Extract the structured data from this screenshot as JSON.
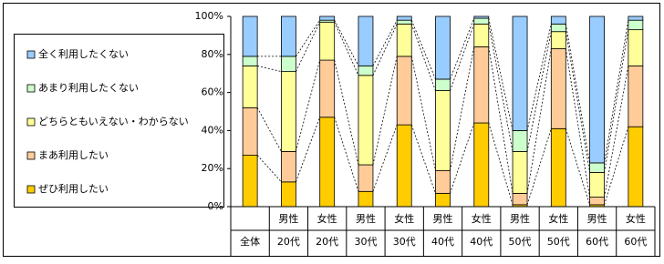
{
  "chart_data": {
    "type": "stacked_bar",
    "categories": [
      [
        "全体"
      ],
      [
        "男性",
        "20代"
      ],
      [
        "女性",
        "20代"
      ],
      [
        "男性",
        "30代"
      ],
      [
        "女性",
        "30代"
      ],
      [
        "男性",
        "40代"
      ],
      [
        "女性",
        "40代"
      ],
      [
        "男性",
        "50代"
      ],
      [
        "女性",
        "50代"
      ],
      [
        "男性",
        "60代"
      ],
      [
        "女性",
        "60代"
      ]
    ],
    "series": [
      {
        "name": "ぜひ利用したい",
        "color": "#ffcc00",
        "values": [
          27,
          13,
          47,
          8,
          43,
          7,
          44,
          1,
          41,
          1,
          42
        ]
      },
      {
        "name": "まあ利用したい",
        "color": "#ffcc99",
        "values": [
          25,
          16,
          30,
          14,
          36,
          12,
          40,
          6,
          42,
          4,
          32
        ]
      },
      {
        "name": "どちらともいえない・わからない",
        "color": "#ffff99",
        "values": [
          22,
          42,
          20,
          47,
          17,
          42,
          12,
          22,
          9,
          13,
          19
        ]
      },
      {
        "name": "あまり利用したくない",
        "color": "#ccffcc",
        "values": [
          5,
          8,
          1,
          5,
          2,
          6,
          3,
          11,
          4,
          5,
          5
        ]
      },
      {
        "name": "全く利用したくない",
        "color": "#99ccff",
        "values": [
          21,
          21,
          2,
          26,
          2,
          33,
          1,
          60,
          4,
          77,
          2
        ]
      }
    ],
    "ylim": [
      0,
      100
    ],
    "yticks": [
      {
        "value": 0,
        "label": "0%"
      },
      {
        "value": 20,
        "label": "20%"
      },
      {
        "value": 40,
        "label": "40%"
      },
      {
        "value": 60,
        "label": "60%"
      },
      {
        "value": 80,
        "label": "80%"
      },
      {
        "value": 100,
        "label": "100%"
      }
    ],
    "series_lines": true
  }
}
